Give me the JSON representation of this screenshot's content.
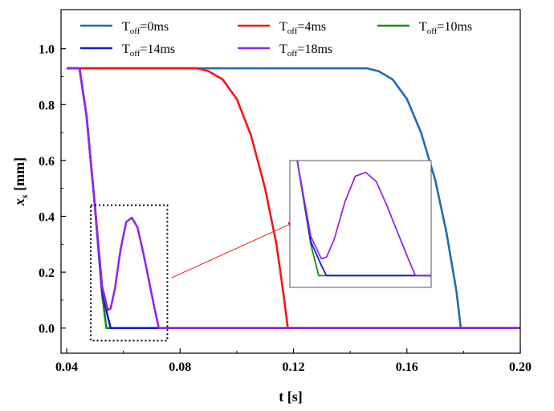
{
  "chart_data": {
    "type": "line",
    "title": "",
    "xlabel": "t [s]",
    "ylabel": {
      "var": "x",
      "sub": "s",
      "unit": " [mm]"
    },
    "xlim": [
      0.038,
      0.2
    ],
    "ylim": [
      -0.09,
      1.14
    ],
    "xticks": [
      {
        "value": 0.04,
        "label": "0.04"
      },
      {
        "value": 0.08,
        "label": "0.08"
      },
      {
        "value": 0.12,
        "label": "0.12"
      },
      {
        "value": 0.16,
        "label": "0.16"
      },
      {
        "value": 0.2,
        "label": "0.20"
      }
    ],
    "yticks": [
      {
        "value": 0.0,
        "label": "0.0"
      },
      {
        "value": 0.2,
        "label": "0.2"
      },
      {
        "value": 0.4,
        "label": "0.4"
      },
      {
        "value": 0.6,
        "label": "0.6"
      },
      {
        "value": 0.8,
        "label": "0.8"
      },
      {
        "value": 1.0,
        "label": "1.0"
      }
    ],
    "legend_location": "top",
    "series": [
      {
        "name": "T_off=0ms",
        "label_main": "T",
        "label_sub": "off",
        "label_rest": "=0ms",
        "color": "#1f6bb3",
        "x": [
          0.04,
          0.08,
          0.12,
          0.146,
          0.15,
          0.155,
          0.16,
          0.165,
          0.17,
          0.174,
          0.1775,
          0.179,
          0.2
        ],
        "y": [
          0.93,
          0.93,
          0.93,
          0.93,
          0.92,
          0.89,
          0.82,
          0.7,
          0.53,
          0.34,
          0.13,
          0.0,
          0.0
        ]
      },
      {
        "name": "T_off=4ms",
        "label_main": "T",
        "label_sub": "off",
        "label_rest": "=4ms",
        "color": "#f01818",
        "x": [
          0.04,
          0.06,
          0.08,
          0.086,
          0.09,
          0.095,
          0.1,
          0.105,
          0.11,
          0.114,
          0.1165,
          0.118,
          0.2
        ],
        "y": [
          0.93,
          0.93,
          0.93,
          0.93,
          0.92,
          0.89,
          0.82,
          0.69,
          0.5,
          0.3,
          0.12,
          0.0,
          0.0
        ]
      },
      {
        "name": "T_off=10ms",
        "label_main": "T",
        "label_sub": "off",
        "label_rest": "=10ms",
        "color": "#178c17",
        "x": [
          0.04,
          0.0445,
          0.047,
          0.05,
          0.0525,
          0.054,
          0.2
        ],
        "y": [
          0.93,
          0.93,
          0.76,
          0.43,
          0.12,
          0.0,
          0.0
        ]
      },
      {
        "name": "T_off=14ms",
        "label_main": "T",
        "label_sub": "off",
        "label_rest": "=14ms",
        "color": "#1a1ad6",
        "x": [
          0.04,
          0.0445,
          0.047,
          0.05,
          0.0525,
          0.0545,
          0.0555,
          0.2
        ],
        "y": [
          0.93,
          0.93,
          0.76,
          0.43,
          0.13,
          0.04,
          0.0,
          0.0
        ]
      },
      {
        "name": "T_off=18ms",
        "label_main": "T",
        "label_sub": "off",
        "label_rest": "=18ms",
        "color": "#9427e8",
        "x": [
          0.04,
          0.0445,
          0.047,
          0.05,
          0.0525,
          0.0545,
          0.0555,
          0.057,
          0.059,
          0.061,
          0.063,
          0.065,
          0.067,
          0.069,
          0.071,
          0.0725,
          0.2
        ],
        "y": [
          0.93,
          0.93,
          0.76,
          0.43,
          0.15,
          0.065,
          0.07,
          0.14,
          0.28,
          0.38,
          0.395,
          0.36,
          0.27,
          0.17,
          0.07,
          0.0,
          0.0
        ]
      }
    ],
    "annotations": [
      {
        "type": "dotted-box",
        "x": [
          0.0485,
          0.0755
        ],
        "y": [
          -0.045,
          0.44
        ]
      },
      {
        "type": "arrow",
        "color": "#f01818",
        "from": [
          0.077,
          0.18
        ],
        "to": [
          0.1205,
          0.38
        ]
      },
      {
        "type": "inset-zoom",
        "x": [
          0.0485,
          0.0755
        ],
        "y": [
          -0.045,
          0.44
        ]
      }
    ]
  }
}
